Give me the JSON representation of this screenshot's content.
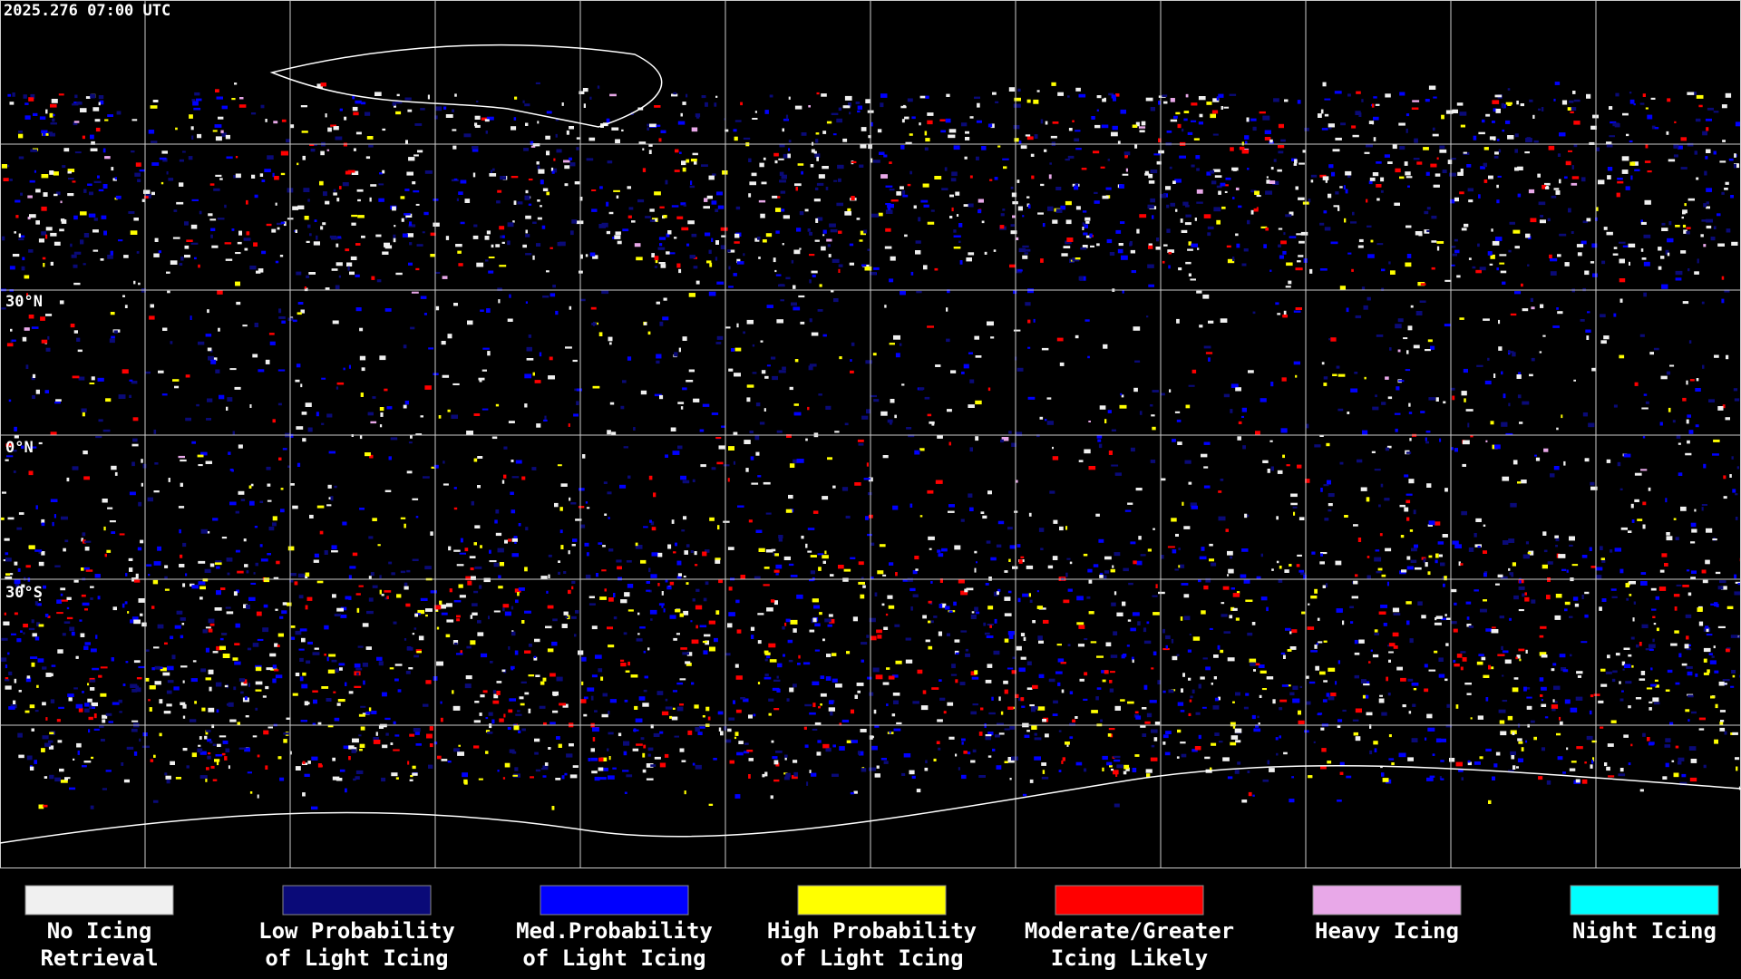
{
  "timestamp": "2025.276 07:00 UTC",
  "latitude_labels": [
    "30°N",
    "0°N",
    "30°S"
  ],
  "legend": [
    {
      "lines": [
        "No Icing",
        "Retrieval"
      ],
      "color": "#f0f0f0"
    },
    {
      "lines": [
        "Low Probability",
        "of Light Icing"
      ],
      "color": "#0a0a78"
    },
    {
      "lines": [
        "Med.Probability",
        "of Light Icing"
      ],
      "color": "#0000ff"
    },
    {
      "lines": [
        "High Probability",
        "of Light Icing"
      ],
      "color": "#ffff00"
    },
    {
      "lines": [
        "Moderate/Greater",
        "Icing Likely"
      ],
      "color": "#ff0000"
    },
    {
      "lines": [
        "Heavy Icing"
      ],
      "color": "#e8a8e8"
    },
    {
      "lines": [
        "Night Icing"
      ],
      "color": "#00ffff"
    }
  ]
}
